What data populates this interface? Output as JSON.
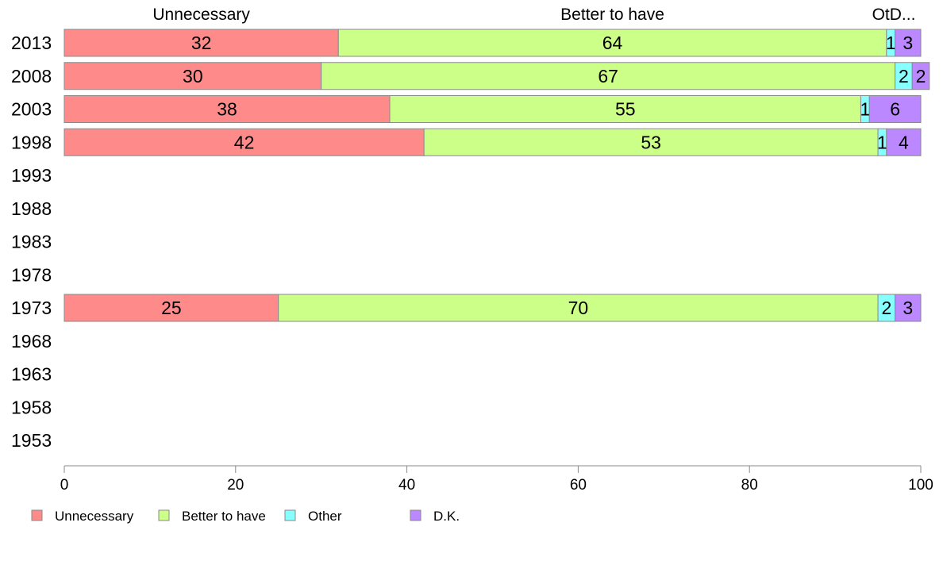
{
  "chart_data": {
    "type": "bar",
    "orientation": "horizontal",
    "stacked": true,
    "categories": [
      "2013",
      "2008",
      "2003",
      "1998",
      "1993",
      "1988",
      "1983",
      "1978",
      "1973",
      "1968",
      "1963",
      "1958",
      "1953"
    ],
    "series": [
      {
        "name": "Unnecessary",
        "color": "#ff8a8a",
        "values": [
          32,
          30,
          38,
          42,
          null,
          null,
          null,
          null,
          25,
          null,
          null,
          null,
          null
        ]
      },
      {
        "name": "Better to have",
        "color": "#ccff88",
        "values": [
          64,
          67,
          55,
          53,
          null,
          null,
          null,
          null,
          70,
          null,
          null,
          null,
          null
        ]
      },
      {
        "name": "Other",
        "color": "#88ffff",
        "values": [
          1,
          2,
          1,
          1,
          null,
          null,
          null,
          null,
          2,
          null,
          null,
          null,
          null
        ]
      },
      {
        "name": "D.K.",
        "color": "#bb88ff",
        "values": [
          3,
          2,
          6,
          4,
          null,
          null,
          null,
          null,
          3,
          null,
          null,
          null,
          null
        ]
      }
    ],
    "top_labels": [
      "Unnecessary",
      "Better to have",
      "OtD..."
    ],
    "xlim": [
      0,
      100
    ],
    "xticks": [
      0,
      20,
      40,
      60,
      80,
      100
    ],
    "legend_position": "bottom-left",
    "grid": false
  }
}
